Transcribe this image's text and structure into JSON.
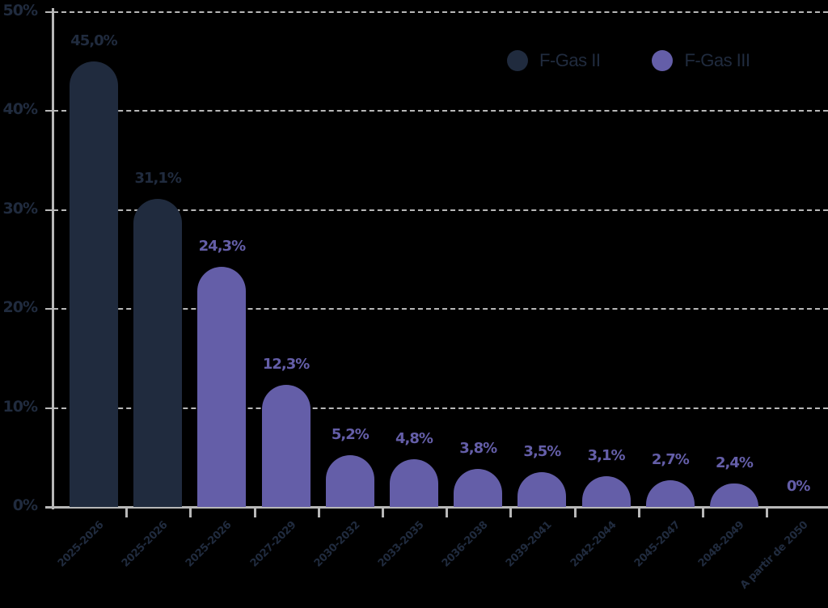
{
  "chart_data": {
    "type": "bar",
    "title": "",
    "xlabel": "",
    "ylabel": "",
    "ylim": [
      0,
      50
    ],
    "yticks": [
      "0%",
      "10%",
      "20%",
      "30%",
      "40%",
      "50%"
    ],
    "grid": true,
    "legend_position": "top-right",
    "categories": [
      "2025-2026",
      "2025-2026",
      "2025-2026",
      "2027-2029",
      "2030-2032",
      "2033-2035",
      "2036-2038",
      "2039-2041",
      "2042-2044",
      "2045-2047",
      "2048-2049",
      "A partir de 2050"
    ],
    "values": [
      45.0,
      31.1,
      24.3,
      12.3,
      5.2,
      4.8,
      3.8,
      3.5,
      3.1,
      2.7,
      2.4,
      0
    ],
    "value_labels": [
      "45,0%",
      "31,1%",
      "24,3%",
      "12,3%",
      "5,2%",
      "4,8%",
      "3,8%",
      "3,5%",
      "3,1%",
      "2,7%",
      "2,4%",
      "0%"
    ],
    "bar_series": [
      "F-Gas II",
      "F-Gas II",
      "F-Gas III",
      "F-Gas III",
      "F-Gas III",
      "F-Gas III",
      "F-Gas III",
      "F-Gas III",
      "F-Gas III",
      "F-Gas III",
      "F-Gas III",
      "F-Gas III"
    ],
    "series": [
      {
        "name": "F-Gas II",
        "color": "#202b3e",
        "values": [
          45.0,
          31.1,
          null,
          null,
          null,
          null,
          null,
          null,
          null,
          null,
          null,
          null
        ]
      },
      {
        "name": "F-Gas III",
        "color": "#645ea8",
        "values": [
          null,
          null,
          24.3,
          12.3,
          5.2,
          4.8,
          3.8,
          3.5,
          3.1,
          2.7,
          2.4,
          0
        ]
      }
    ]
  },
  "legend": {
    "items": [
      {
        "label": "F-Gas II",
        "color": "#202b3e"
      },
      {
        "label": "F-Gas III",
        "color": "#645ea8"
      }
    ]
  },
  "colors": {
    "background": "#000000",
    "axis": "#b8b8b8",
    "text": "#202b3e",
    "f_gas_ii": "#202b3e",
    "f_gas_iii": "#645ea8"
  }
}
